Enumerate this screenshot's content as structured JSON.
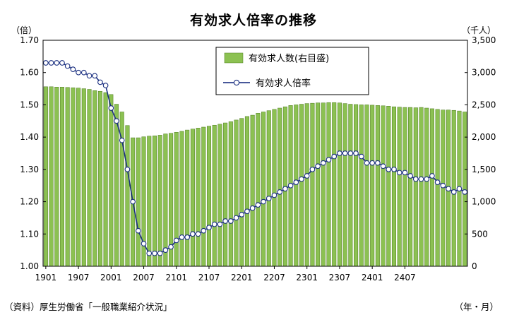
{
  "title": "有効求人倍率の推移",
  "left_unit": "（倍）",
  "right_unit": "（千人）",
  "source": "（資料）厚生労働省「一般職業紹介状況」",
  "x_unit": "（年・月）",
  "colors": {
    "bar_fill": "#8cc152",
    "bar_stroke": "#4d7a1f",
    "line": "#1a2f80",
    "marker_fill": "#ffffff"
  },
  "chart_data": {
    "type": "bar+line",
    "x_tick_labels": [
      "1901",
      "1907",
      "2001",
      "2007",
      "2101",
      "2107",
      "2201",
      "2207",
      "2301",
      "2307",
      "2401",
      "2407"
    ],
    "y_left": {
      "ticks": [
        "1.00",
        "1.10",
        "1.20",
        "1.30",
        "1.40",
        "1.50",
        "1.60",
        "1.70"
      ],
      "lim": [
        1.0,
        1.7
      ]
    },
    "y_right": {
      "ticks": [
        "0",
        "500",
        "1,000",
        "1,500",
        "2,000",
        "2,500",
        "3,000",
        "3,500"
      ],
      "lim": [
        0,
        3500
      ]
    },
    "grid": false,
    "legend": {
      "position": "top-center",
      "bar_label": "有効求人数(右目盛)",
      "line_label": "有効求人倍率"
    },
    "series": [
      {
        "name": "有効求人数(右目盛)",
        "type": "bar",
        "axis": "right",
        "values": [
          2780,
          2780,
          2775,
          2775,
          2770,
          2765,
          2760,
          2750,
          2740,
          2720,
          2710,
          2690,
          2660,
          2510,
          2390,
          2180,
          1990,
          1990,
          2005,
          2015,
          2020,
          2030,
          2050,
          2060,
          2075,
          2090,
          2110,
          2125,
          2140,
          2155,
          2170,
          2185,
          2200,
          2220,
          2240,
          2265,
          2290,
          2320,
          2340,
          2370,
          2390,
          2410,
          2430,
          2450,
          2470,
          2490,
          2500,
          2510,
          2520,
          2525,
          2530,
          2530,
          2535,
          2535,
          2530,
          2520,
          2510,
          2505,
          2500,
          2500,
          2495,
          2490,
          2485,
          2480,
          2470,
          2465,
          2460,
          2460,
          2455,
          2460,
          2450,
          2440,
          2430,
          2420,
          2420,
          2415,
          2405,
          2390
        ]
      },
      {
        "name": "有効求人倍率",
        "type": "line",
        "axis": "left",
        "values": [
          1.63,
          1.63,
          1.63,
          1.63,
          1.62,
          1.61,
          1.6,
          1.6,
          1.59,
          1.59,
          1.57,
          1.56,
          1.49,
          1.45,
          1.39,
          1.3,
          1.2,
          1.11,
          1.07,
          1.04,
          1.04,
          1.04,
          1.05,
          1.06,
          1.08,
          1.09,
          1.09,
          1.1,
          1.1,
          1.11,
          1.12,
          1.13,
          1.13,
          1.14,
          1.14,
          1.15,
          1.16,
          1.17,
          1.18,
          1.19,
          1.2,
          1.21,
          1.22,
          1.23,
          1.24,
          1.25,
          1.26,
          1.27,
          1.28,
          1.3,
          1.31,
          1.32,
          1.33,
          1.34,
          1.35,
          1.35,
          1.35,
          1.35,
          1.34,
          1.32,
          1.32,
          1.32,
          1.31,
          1.3,
          1.3,
          1.29,
          1.29,
          1.28,
          1.27,
          1.27,
          1.27,
          1.28,
          1.26,
          1.25,
          1.24,
          1.23,
          1.24,
          1.23
        ]
      }
    ]
  }
}
